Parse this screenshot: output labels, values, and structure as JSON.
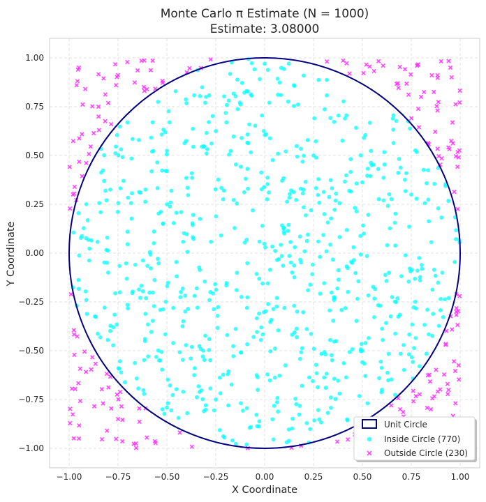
{
  "chart_data": {
    "type": "scatter",
    "title_line1": "Monte Carlo π Estimate (N = 1000)",
    "title_line2": "Estimate: 3.08000",
    "xlabel": "X Coordinate",
    "ylabel": "Y Coordinate",
    "xlim": [
      -1.1,
      1.1
    ],
    "ylim": [
      -1.1,
      1.1
    ],
    "xticks": [
      -1.0,
      -0.75,
      -0.5,
      -0.25,
      0.0,
      0.25,
      0.5,
      0.75,
      1.0
    ],
    "yticks": [
      -1.0,
      -0.75,
      -0.5,
      -0.25,
      0.0,
      0.25,
      0.5,
      0.75,
      1.0
    ],
    "xtick_labels": [
      "−1.00",
      "−0.75",
      "−0.50",
      "−0.25",
      "0.00",
      "0.25",
      "0.50",
      "0.75",
      "1.00"
    ],
    "ytick_labels": [
      "−1.00",
      "−0.75",
      "−0.50",
      "−0.25",
      "0.00",
      "0.25",
      "0.50",
      "0.75",
      "1.00"
    ],
    "grid": true,
    "legend_position": "lower-right",
    "n_points": 1000,
    "pi_estimate": 3.08,
    "circle": {
      "center": [
        0,
        0
      ],
      "radius": 1,
      "label": "Unit Circle",
      "color": "#000080"
    },
    "series": [
      {
        "name": "Inside Circle (770)",
        "count": 770,
        "marker": "circle",
        "color": "#00FFFF",
        "sample_points": [
          [
            0.0,
            0.97
          ],
          [
            0.25,
            0.5
          ],
          [
            -0.5,
            0.25
          ],
          [
            0.5,
            -0.5
          ],
          [
            -0.25,
            -0.75
          ],
          [
            0.1,
            0.1
          ],
          [
            -0.8,
            -0.1
          ],
          [
            0.75,
            0.3
          ],
          [
            -0.3,
            0.8
          ],
          [
            0.6,
            -0.7
          ]
        ]
      },
      {
        "name": "Outside Circle (230)",
        "count": 230,
        "marker": "x",
        "color": "#FF33FF",
        "sample_points": [
          [
            -0.95,
            0.95
          ],
          [
            0.95,
            0.95
          ],
          [
            -0.95,
            -0.95
          ],
          [
            0.95,
            -0.95
          ],
          [
            -0.85,
            0.75
          ],
          [
            0.8,
            0.8
          ],
          [
            -0.75,
            -0.85
          ],
          [
            0.85,
            -0.8
          ],
          [
            -0.98,
            0.3
          ],
          [
            0.98,
            -0.3
          ]
        ]
      }
    ]
  },
  "colors": {
    "background": "#ffffff",
    "grid": "#d9d9d9",
    "frame": "#cccccc",
    "text": "#262626"
  }
}
